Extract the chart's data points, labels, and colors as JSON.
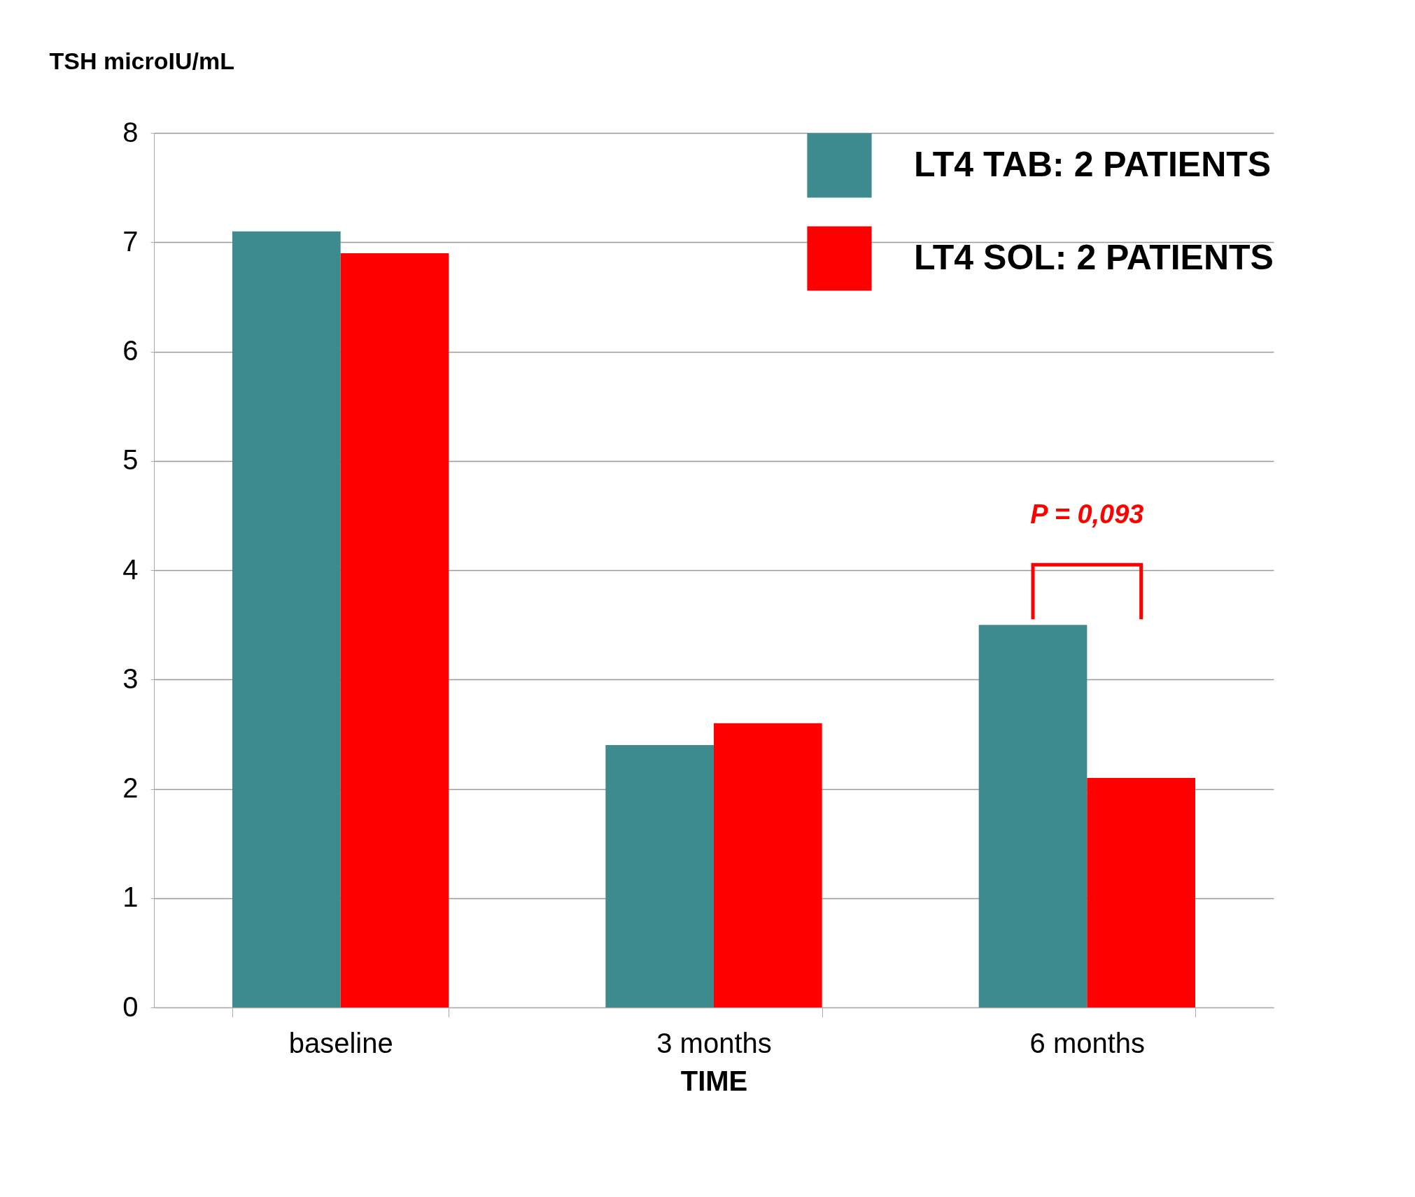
{
  "chart_data": {
    "type": "bar",
    "xlabel": "TIME",
    "ylabel": "TSH microIU/mL",
    "categories": [
      "baseline",
      "3 months",
      "6 months"
    ],
    "series": [
      {
        "name": "LT4 TAB: 2 PATIENTS",
        "color": "#3e8b8f",
        "values": [
          7.1,
          2.4,
          3.5
        ]
      },
      {
        "name": "LT4 SOL: 2 PATIENTS",
        "color": "#ff0000",
        "values": [
          6.9,
          2.6,
          2.1
        ]
      }
    ],
    "ylim": [
      0,
      8
    ],
    "yticks": [
      0,
      1,
      2,
      3,
      4,
      5,
      6,
      7,
      8
    ],
    "grid": "y",
    "legend": "top right",
    "annotations": [
      "P = 0,093"
    ]
  }
}
